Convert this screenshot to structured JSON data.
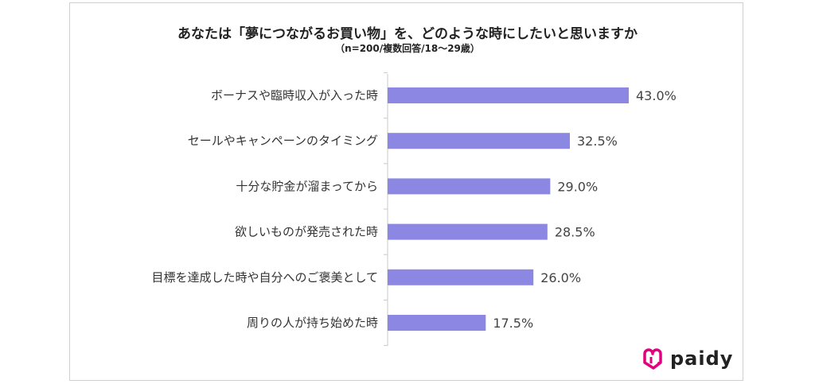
{
  "chart_data": {
    "type": "bar",
    "orientation": "horizontal",
    "title": "あなたは「夢につながるお買い物」を、どのような時にしたいと思いますか",
    "subtitle": "（n=200/複数回答/18～29歳）",
    "categories": [
      "ボーナスや臨時収入が入った時",
      "セールやキャンペーンのタイミング",
      "十分な貯金が溜まってから",
      "欲しいものが発売された時",
      "目標を達成した時や自分へのご褒美として",
      "周りの人が持ち始めた時"
    ],
    "values": [
      43.0,
      32.5,
      29.0,
      28.5,
      26.0,
      17.5
    ],
    "value_labels": [
      "43.0%",
      "32.5%",
      "29.0%",
      "28.5%",
      "26.0%",
      "17.5%"
    ],
    "xlim": [
      0,
      50
    ],
    "grid": false,
    "bar_color": "#8b87e2"
  },
  "brand": {
    "name": "paidy",
    "color": "#e3007f"
  }
}
